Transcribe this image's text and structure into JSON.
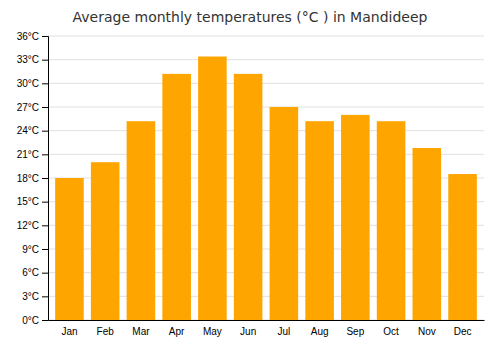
{
  "chart_data": {
    "type": "bar",
    "title": "Average monthly temperatures (°C ) in Mandideep",
    "categories": [
      "Jan",
      "Feb",
      "Mar",
      "Apr",
      "May",
      "Jun",
      "Jul",
      "Aug",
      "Sep",
      "Oct",
      "Nov",
      "Dec"
    ],
    "values": [
      18.0,
      20.0,
      25.2,
      31.2,
      33.4,
      31.2,
      27.0,
      25.2,
      26.0,
      25.2,
      21.8,
      18.5
    ],
    "color": "#FFA500",
    "ylim": [
      0,
      36
    ],
    "yticks": [
      {
        "value": 0,
        "label": "0°C"
      },
      {
        "value": 3,
        "label": "3°C"
      },
      {
        "value": 6,
        "label": "6°C"
      },
      {
        "value": 9,
        "label": "9°C"
      },
      {
        "value": 12,
        "label": "12°C"
      },
      {
        "value": 15,
        "label": "15°C"
      },
      {
        "value": 18,
        "label": "18°C"
      },
      {
        "value": 21,
        "label": "21°C"
      },
      {
        "value": 24,
        "label": "24°C"
      },
      {
        "value": 27,
        "label": "27°C"
      },
      {
        "value": 30,
        "label": "30°C"
      },
      {
        "value": 33,
        "label": "33°C"
      },
      {
        "value": 36,
        "label": "36°C"
      }
    ],
    "grid": true
  }
}
